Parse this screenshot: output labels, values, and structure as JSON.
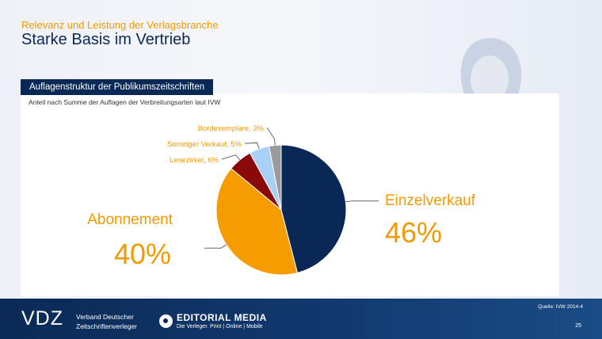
{
  "header": {
    "supertitle": "Relevanz und Leistung der Verlagsbranche",
    "title": "Starke Basis im Vertrieb"
  },
  "section": {
    "tab_label": "Auflagenstruktur der Publikumszeitschriften",
    "subtitle": "Anteil nach Summe der Auflagen der Verbreitungsarten laut IVW"
  },
  "chart_data": {
    "type": "pie",
    "title": "Auflagenstruktur der Publikumszeitschriften",
    "slices": [
      {
        "label": "Einzelverkauf",
        "value": 46,
        "value_label": "46%",
        "color": "#0a2855"
      },
      {
        "label": "Abonnement",
        "value": 40,
        "value_label": "40%",
        "color": "#f59c00"
      },
      {
        "label": "Lesezirkel",
        "value": 6,
        "value_label": "Lesezirkel, 6%",
        "color": "#8a0a0a"
      },
      {
        "label": "Sonstiger Verkauf",
        "value": 5,
        "value_label": "Sonstiger Verkauf, 5%",
        "color": "#a9d0f5"
      },
      {
        "label": "Bordexemplare",
        "value": 3,
        "value_label": "Bordexemplare, 3%",
        "color": "#9a9a9a"
      }
    ]
  },
  "footer": {
    "vdz_logo": "VDZ",
    "vdz_name_line1": "Verband Deutscher",
    "vdz_name_line2": "Zeitschriftenverleger",
    "em_title": "EDITORIAL MEDIA",
    "em_sub": "Die Verleger. Print | Online | Mobile",
    "source": "Quelle: IVW 2014-4",
    "page": "25"
  },
  "colors": {
    "accent": "#f29a00",
    "navy": "#0a2855"
  }
}
